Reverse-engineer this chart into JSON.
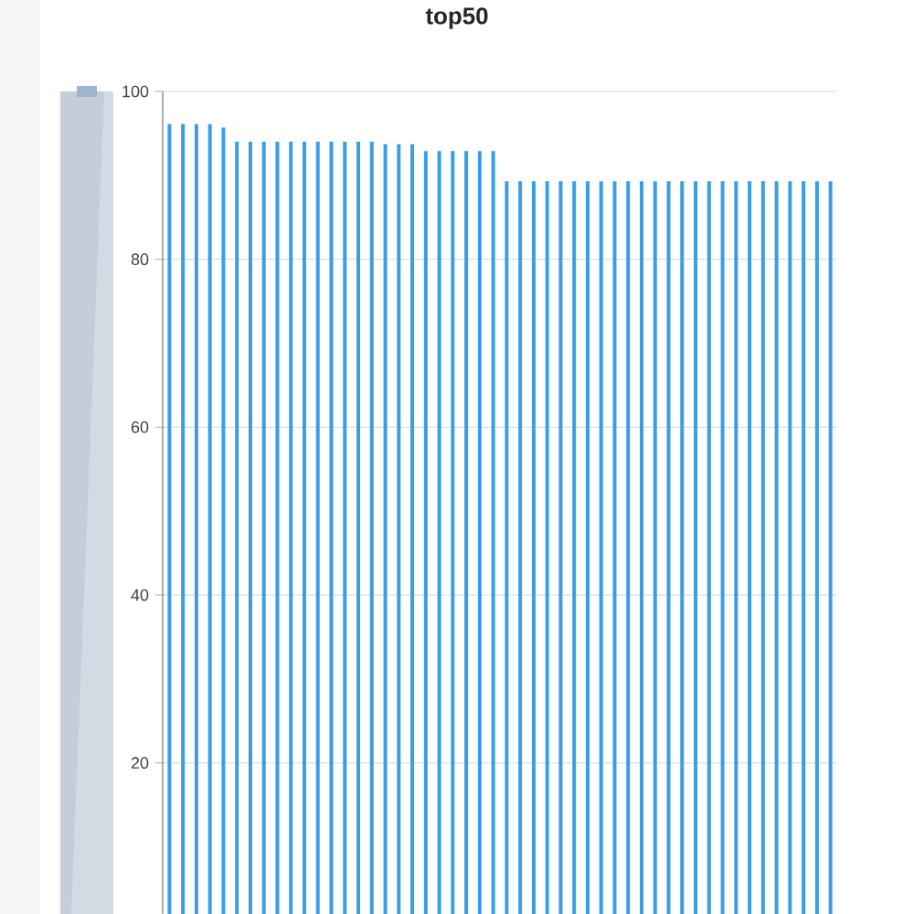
{
  "chart_data": {
    "type": "bar",
    "title": "top50",
    "categories": [
      null,
      null,
      null,
      null,
      null,
      null,
      null,
      null,
      null,
      null,
      null,
      null,
      null,
      null,
      null,
      null,
      null,
      null,
      null,
      null,
      null,
      null,
      null,
      null,
      null,
      null,
      null,
      null,
      null,
      null,
      null,
      null,
      null,
      null,
      null,
      null,
      null,
      null,
      null,
      null,
      null,
      null,
      null,
      null,
      null,
      null,
      null,
      null,
      null,
      null
    ],
    "values": [
      96.1,
      96.1,
      96.1,
      96.1,
      95.7,
      94.0,
      94.0,
      94.0,
      94.0,
      94.0,
      94.0,
      94.0,
      94.0,
      94.0,
      94.0,
      94.0,
      93.7,
      93.7,
      93.7,
      92.9,
      92.9,
      92.9,
      92.9,
      92.9,
      92.9,
      89.3,
      89.3,
      89.3,
      89.3,
      89.3,
      89.3,
      89.3,
      89.3,
      89.3,
      89.3,
      89.3,
      89.3,
      89.3,
      89.3,
      89.3,
      89.3,
      89.3,
      89.3,
      89.3,
      89.3,
      89.3,
      89.3,
      89.3,
      89.3,
      89.3
    ],
    "color": "#3a9ee4",
    "ylim": [
      2,
      100
    ],
    "yticks": [
      20,
      40,
      60,
      80,
      100
    ],
    "grid": "y"
  }
}
